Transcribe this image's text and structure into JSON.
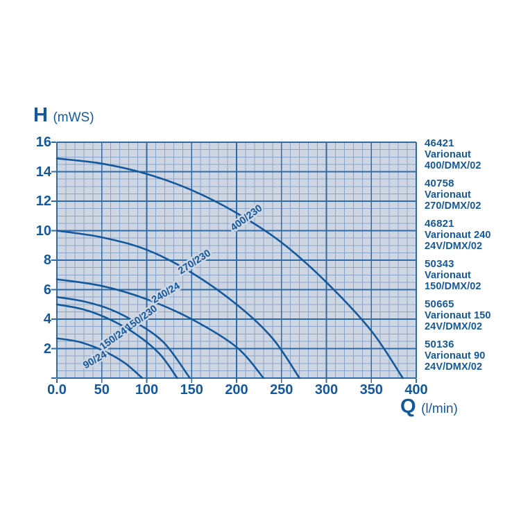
{
  "colors": {
    "accent": "#14589c",
    "plot_bg": "#cfd6e3",
    "grid_minor": "#8aa5c8",
    "grid_major": "#2e6ba6",
    "curve": "#14589c",
    "label_halo": "#cfd6e3"
  },
  "axes": {
    "y_title": "H",
    "y_unit": "(mWS)",
    "x_title": "Q",
    "x_unit": "(l/min)",
    "x_ticks": [
      "0.0",
      "50",
      "100",
      "150",
      "200",
      "250",
      "300",
      "350",
      "400"
    ],
    "x_tick_values": [
      0,
      50,
      100,
      150,
      200,
      250,
      300,
      350,
      400
    ],
    "y_ticks": [
      "16",
      "14",
      "12",
      "10",
      "8",
      "6",
      "4",
      "2"
    ],
    "y_tick_values": [
      16,
      14,
      12,
      10,
      8,
      6,
      4,
      2
    ]
  },
  "chart_data": {
    "type": "line",
    "title": "",
    "xlabel": "Q (l/min)",
    "ylabel": "H (mWS)",
    "xlim": [
      0,
      400
    ],
    "ylim": [
      0,
      16
    ],
    "x_major_step": 50,
    "x_minor_step": 10,
    "y_major_step": 2,
    "y_minor_step": 0.5,
    "grid": true,
    "legend_position": "right",
    "series": [
      {
        "name": "400/230",
        "points": [
          [
            0,
            14.9
          ],
          [
            50,
            14.55
          ],
          [
            100,
            13.85
          ],
          [
            150,
            12.75
          ],
          [
            200,
            11.2
          ],
          [
            250,
            9.2
          ],
          [
            300,
            6.5
          ],
          [
            350,
            3.2
          ],
          [
            385,
            0
          ]
        ],
        "label_at": [
          213,
          10.7
        ],
        "label_angle": -37
      },
      {
        "name": "270/230",
        "points": [
          [
            0,
            10.0
          ],
          [
            50,
            9.55
          ],
          [
            100,
            8.7
          ],
          [
            150,
            7.15
          ],
          [
            200,
            5.0
          ],
          [
            240,
            2.7
          ],
          [
            270,
            0
          ]
        ],
        "label_at": [
          155,
          7.7
        ],
        "label_angle": -33
      },
      {
        "name": "240/24",
        "points": [
          [
            0,
            6.7
          ],
          [
            50,
            6.25
          ],
          [
            100,
            5.35
          ],
          [
            150,
            4.0
          ],
          [
            200,
            2.1
          ],
          [
            230,
            0
          ]
        ],
        "label_at": [
          123,
          5.6
        ],
        "label_angle": -31
      },
      {
        "name": "150/230",
        "points": [
          [
            0,
            5.5
          ],
          [
            30,
            5.2
          ],
          [
            60,
            4.65
          ],
          [
            90,
            3.7
          ],
          [
            120,
            2.35
          ],
          [
            148,
            0
          ]
        ],
        "label_at": [
          96,
          3.9
        ],
        "label_angle": -36
      },
      {
        "name": "150/24",
        "points": [
          [
            0,
            5.0
          ],
          [
            30,
            4.65
          ],
          [
            60,
            3.95
          ],
          [
            90,
            2.9
          ],
          [
            115,
            1.6
          ],
          [
            134,
            0
          ]
        ],
        "label_at": [
          65,
          2.5
        ],
        "label_angle": -36
      },
      {
        "name": "90/24",
        "points": [
          [
            0,
            2.7
          ],
          [
            25,
            2.45
          ],
          [
            50,
            1.9
          ],
          [
            75,
            1.05
          ],
          [
            95,
            0
          ]
        ],
        "label_at": [
          44,
          1.05
        ],
        "label_angle": -30
      }
    ]
  },
  "legend": {
    "items": [
      {
        "code": "46421",
        "lines": [
          "Varionaut",
          "400/DMX/02"
        ]
      },
      {
        "code": "40758",
        "lines": [
          "Varionaut",
          "270/DMX/02"
        ]
      },
      {
        "code": "46821",
        "lines": [
          "Varionaut 240",
          "24V/DMX/02"
        ]
      },
      {
        "code": "50343",
        "lines": [
          "Varionaut",
          "150/DMX/02"
        ]
      },
      {
        "code": "50665",
        "lines": [
          "Varionaut 150",
          "24V/DMX/02"
        ]
      },
      {
        "code": "50136",
        "lines": [
          "Varionaut 90",
          "24V/DMX/02"
        ]
      }
    ]
  }
}
